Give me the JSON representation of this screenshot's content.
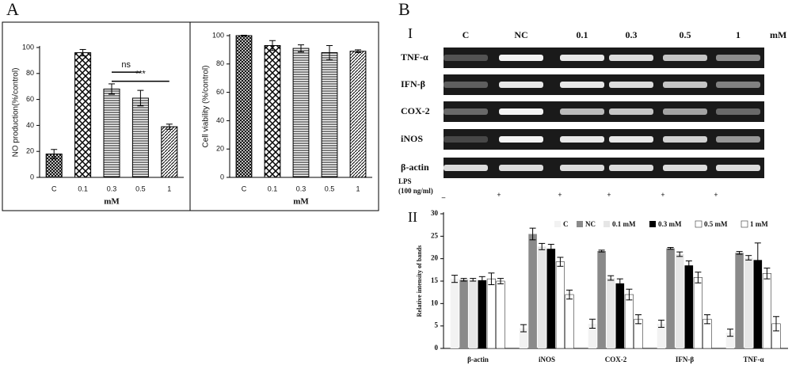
{
  "figure": {
    "panel_a": "A",
    "panel_b": "B",
    "sub_i": "I",
    "sub_ii": "II",
    "gel": {
      "lane_labels": [
        "C",
        "NC",
        "0.1",
        "0.3",
        "0.5",
        "1"
      ],
      "unit": "mM",
      "row_labels": [
        "TNF-α",
        "IFN-β",
        "COX-2",
        "iNOS",
        "β-actin"
      ],
      "lps_label": [
        "LPS",
        "(100 ng/ml)"
      ],
      "lps_signs": [
        "_",
        "+",
        "+",
        "+",
        "+",
        "+"
      ]
    }
  },
  "chart_data": [
    {
      "type": "bar",
      "ylabel": "NO production(%/control)",
      "xlabel": "mM",
      "categories": [
        "C",
        "0.1",
        "0.3",
        "0.5",
        "1"
      ],
      "values": [
        18,
        96,
        68,
        61,
        39
      ],
      "errors": [
        3.5,
        2.5,
        4,
        6,
        2
      ],
      "patterns": [
        "crosshatch",
        "checker",
        "hlines",
        "hlines",
        "dlines"
      ],
      "annotations": [
        "ns",
        "***"
      ],
      "ylim": [
        0,
        100
      ],
      "yticks": [
        0,
        20,
        40,
        60,
        80,
        100
      ]
    },
    {
      "type": "bar",
      "ylabel": "Cell viability (%/control)",
      "xlabel": "mM",
      "categories": [
        "C",
        "0.1",
        "0.3",
        "0.5",
        "1"
      ],
      "values": [
        100,
        93,
        91,
        88,
        89
      ],
      "errors": [
        0.3,
        3.5,
        2.5,
        5,
        1
      ],
      "patterns": [
        "crosshatch",
        "checker",
        "hlines",
        "hlines",
        "dlines"
      ],
      "ylim": [
        0,
        100
      ],
      "yticks": [
        0,
        20,
        40,
        60,
        80,
        100
      ]
    },
    {
      "type": "bar",
      "ylabel": "Relative intensity of bands",
      "categories": [
        "β-actin",
        "iNOS",
        "COX-2",
        "IFN-β",
        "TNF-α"
      ],
      "series": [
        {
          "name": "C",
          "color": "#f2f2f2",
          "values": [
            15.5,
            4.5,
            5.5,
            5.5,
            3.5
          ],
          "errors": [
            0.8,
            0.8,
            1,
            0.8,
            0.8
          ]
        },
        {
          "name": "NC",
          "color": "#8a8a8a",
          "values": [
            15.3,
            25.5,
            21.7,
            22.3,
            21.3
          ],
          "errors": [
            0.3,
            1.3,
            0.2,
            0.2,
            0.3
          ]
        },
        {
          "name": "0.1 mM",
          "color": "#e6e6e6",
          "values": [
            15.3,
            22.7,
            15.7,
            21,
            20.2
          ],
          "errors": [
            0.3,
            0.7,
            0.5,
            0.5,
            0.5
          ]
        },
        {
          "name": "0.3 mM",
          "color": "#000000",
          "values": [
            15.2,
            22.2,
            14.5,
            18.5,
            19.7
          ],
          "errors": [
            0.8,
            1,
            1,
            1,
            3.8
          ]
        },
        {
          "name": "0.5 mM",
          "color": "#ffffff",
          "values": [
            15.5,
            19.3,
            12,
            15.8,
            16.7
          ],
          "errors": [
            1.3,
            1,
            1.2,
            1.2,
            1.2
          ]
        },
        {
          "name": "1 mM",
          "color": "#ffffff",
          "values": [
            15,
            12,
            6.5,
            6.5,
            5.5
          ],
          "errors": [
            0.6,
            1,
            1,
            1,
            1.6
          ]
        }
      ],
      "ylim": [
        0,
        30
      ],
      "yticks": [
        0,
        5,
        10,
        15,
        20,
        25,
        30
      ]
    }
  ]
}
